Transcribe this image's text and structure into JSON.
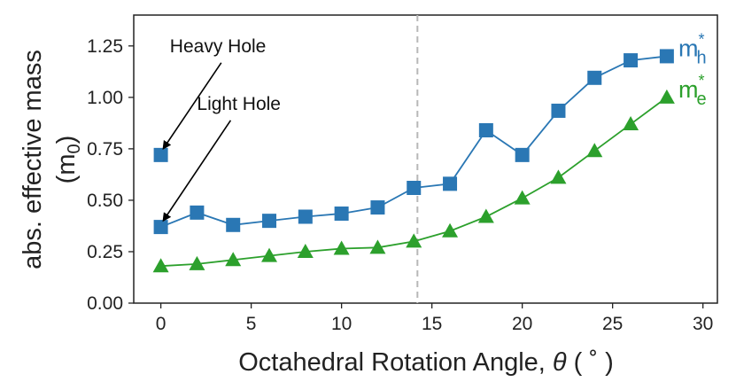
{
  "chart_data": {
    "type": "line",
    "xlabel_prefix": "Octahedral Rotation Angle, ",
    "xlabel_symbol": "θ",
    "xlabel_unit": " ( ˚ )",
    "ylabel_line1": "abs. effective mass",
    "ylabel_line2_prefix": "(m",
    "ylabel_line2_sub": "0",
    "ylabel_line2_suffix": ")",
    "xlim": [
      -1.5,
      30.8
    ],
    "ylim": [
      0.0,
      1.4
    ],
    "xticks": [
      0,
      5,
      10,
      15,
      20,
      25,
      30
    ],
    "xtick_labels": [
      "0",
      "5",
      "10",
      "15",
      "20",
      "25",
      "30"
    ],
    "yticks": [
      0.0,
      0.25,
      0.5,
      0.75,
      1.0,
      1.25
    ],
    "ytick_labels": [
      "0.00",
      "0.25",
      "0.50",
      "0.75",
      "1.00",
      "1.25"
    ],
    "vline_x": 14.2,
    "series": [
      {
        "name": "hole",
        "label_base": "m",
        "label_sup": "*",
        "label_sub": "h",
        "color": "#2a77b4",
        "marker": "square",
        "x": [
          0,
          2,
          4,
          6,
          8,
          10,
          12,
          14,
          16,
          18,
          20,
          22,
          24,
          26,
          28
        ],
        "y": [
          0.37,
          0.44,
          0.38,
          0.4,
          0.42,
          0.435,
          0.465,
          0.56,
          0.58,
          0.84,
          0.72,
          0.935,
          1.095,
          1.18,
          1.2
        ]
      },
      {
        "name": "electron",
        "label_base": "m",
        "label_sup": "*",
        "label_sub": "e",
        "color": "#2ca02c",
        "marker": "triangle",
        "x": [
          0,
          2,
          4,
          6,
          8,
          10,
          12,
          14,
          16,
          18,
          20,
          22,
          24,
          26,
          28
        ],
        "y": [
          0.18,
          0.19,
          0.21,
          0.23,
          0.25,
          0.265,
          0.27,
          0.3,
          0.35,
          0.42,
          0.51,
          0.61,
          0.74,
          0.87,
          1.0
        ]
      }
    ],
    "heavy_hole_point": {
      "x": 0,
      "y": 0.72
    },
    "annotations": [
      {
        "text": "Heavy Hole",
        "text_x": 0.5,
        "text_y": 1.22,
        "arrow_x": 0.0,
        "arrow_y": 0.735
      },
      {
        "text": "Light Hole",
        "text_x": 2.0,
        "text_y": 0.94,
        "arrow_x": 0.0,
        "arrow_y": 0.385
      }
    ]
  }
}
